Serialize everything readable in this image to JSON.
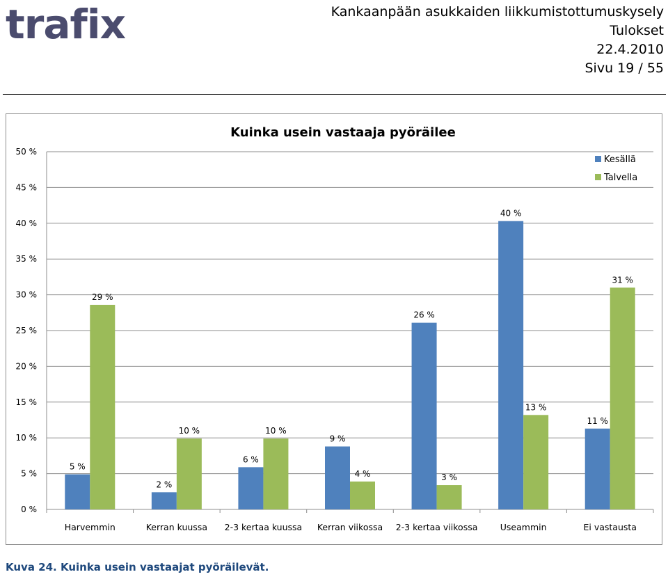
{
  "header": {
    "logo": "trafix",
    "lines": [
      "Kankaanpään asukkaiden liikkumistottumuskysely",
      "Tulokset",
      "22.4.2010",
      "Sivu 19 / 55"
    ]
  },
  "caption": "Kuva 24. Kuinka usein vastaajat pyöräilevät.",
  "chart_data": {
    "type": "bar",
    "title": "Kuinka usein vastaaja pyöräilee",
    "categories": [
      "Harvemmin",
      "Kerran kuussa",
      "2-3 kertaa kuussa",
      "Kerran viikossa",
      "2-3 kertaa viikossa",
      "Useammin",
      "Ei vastausta"
    ],
    "series": [
      {
        "name": "Kesällä",
        "color": "#4f81bd",
        "values": [
          4.9,
          2.4,
          5.9,
          8.8,
          26.1,
          40.3,
          11.3
        ],
        "labels": [
          "5 %",
          "2 %",
          "6 %",
          "9 %",
          "26 %",
          "40 %",
          "11 %"
        ]
      },
      {
        "name": "Talvella",
        "color": "#9bbb59",
        "values": [
          28.6,
          9.9,
          9.9,
          3.9,
          3.4,
          13.2,
          31.0
        ],
        "labels": [
          "29 %",
          "10 %",
          "10 %",
          "4 %",
          "3 %",
          "13 %",
          "31 %"
        ]
      }
    ],
    "ylim": [
      0,
      50
    ],
    "yticks": [
      0,
      5,
      10,
      15,
      20,
      25,
      30,
      35,
      40,
      45,
      50
    ],
    "ytick_labels": [
      "0 %",
      "5 %",
      "10 %",
      "15 %",
      "20 %",
      "25 %",
      "30 %",
      "35 %",
      "40 %",
      "45 %",
      "50 %"
    ],
    "grid": true,
    "legend": "top-right"
  }
}
